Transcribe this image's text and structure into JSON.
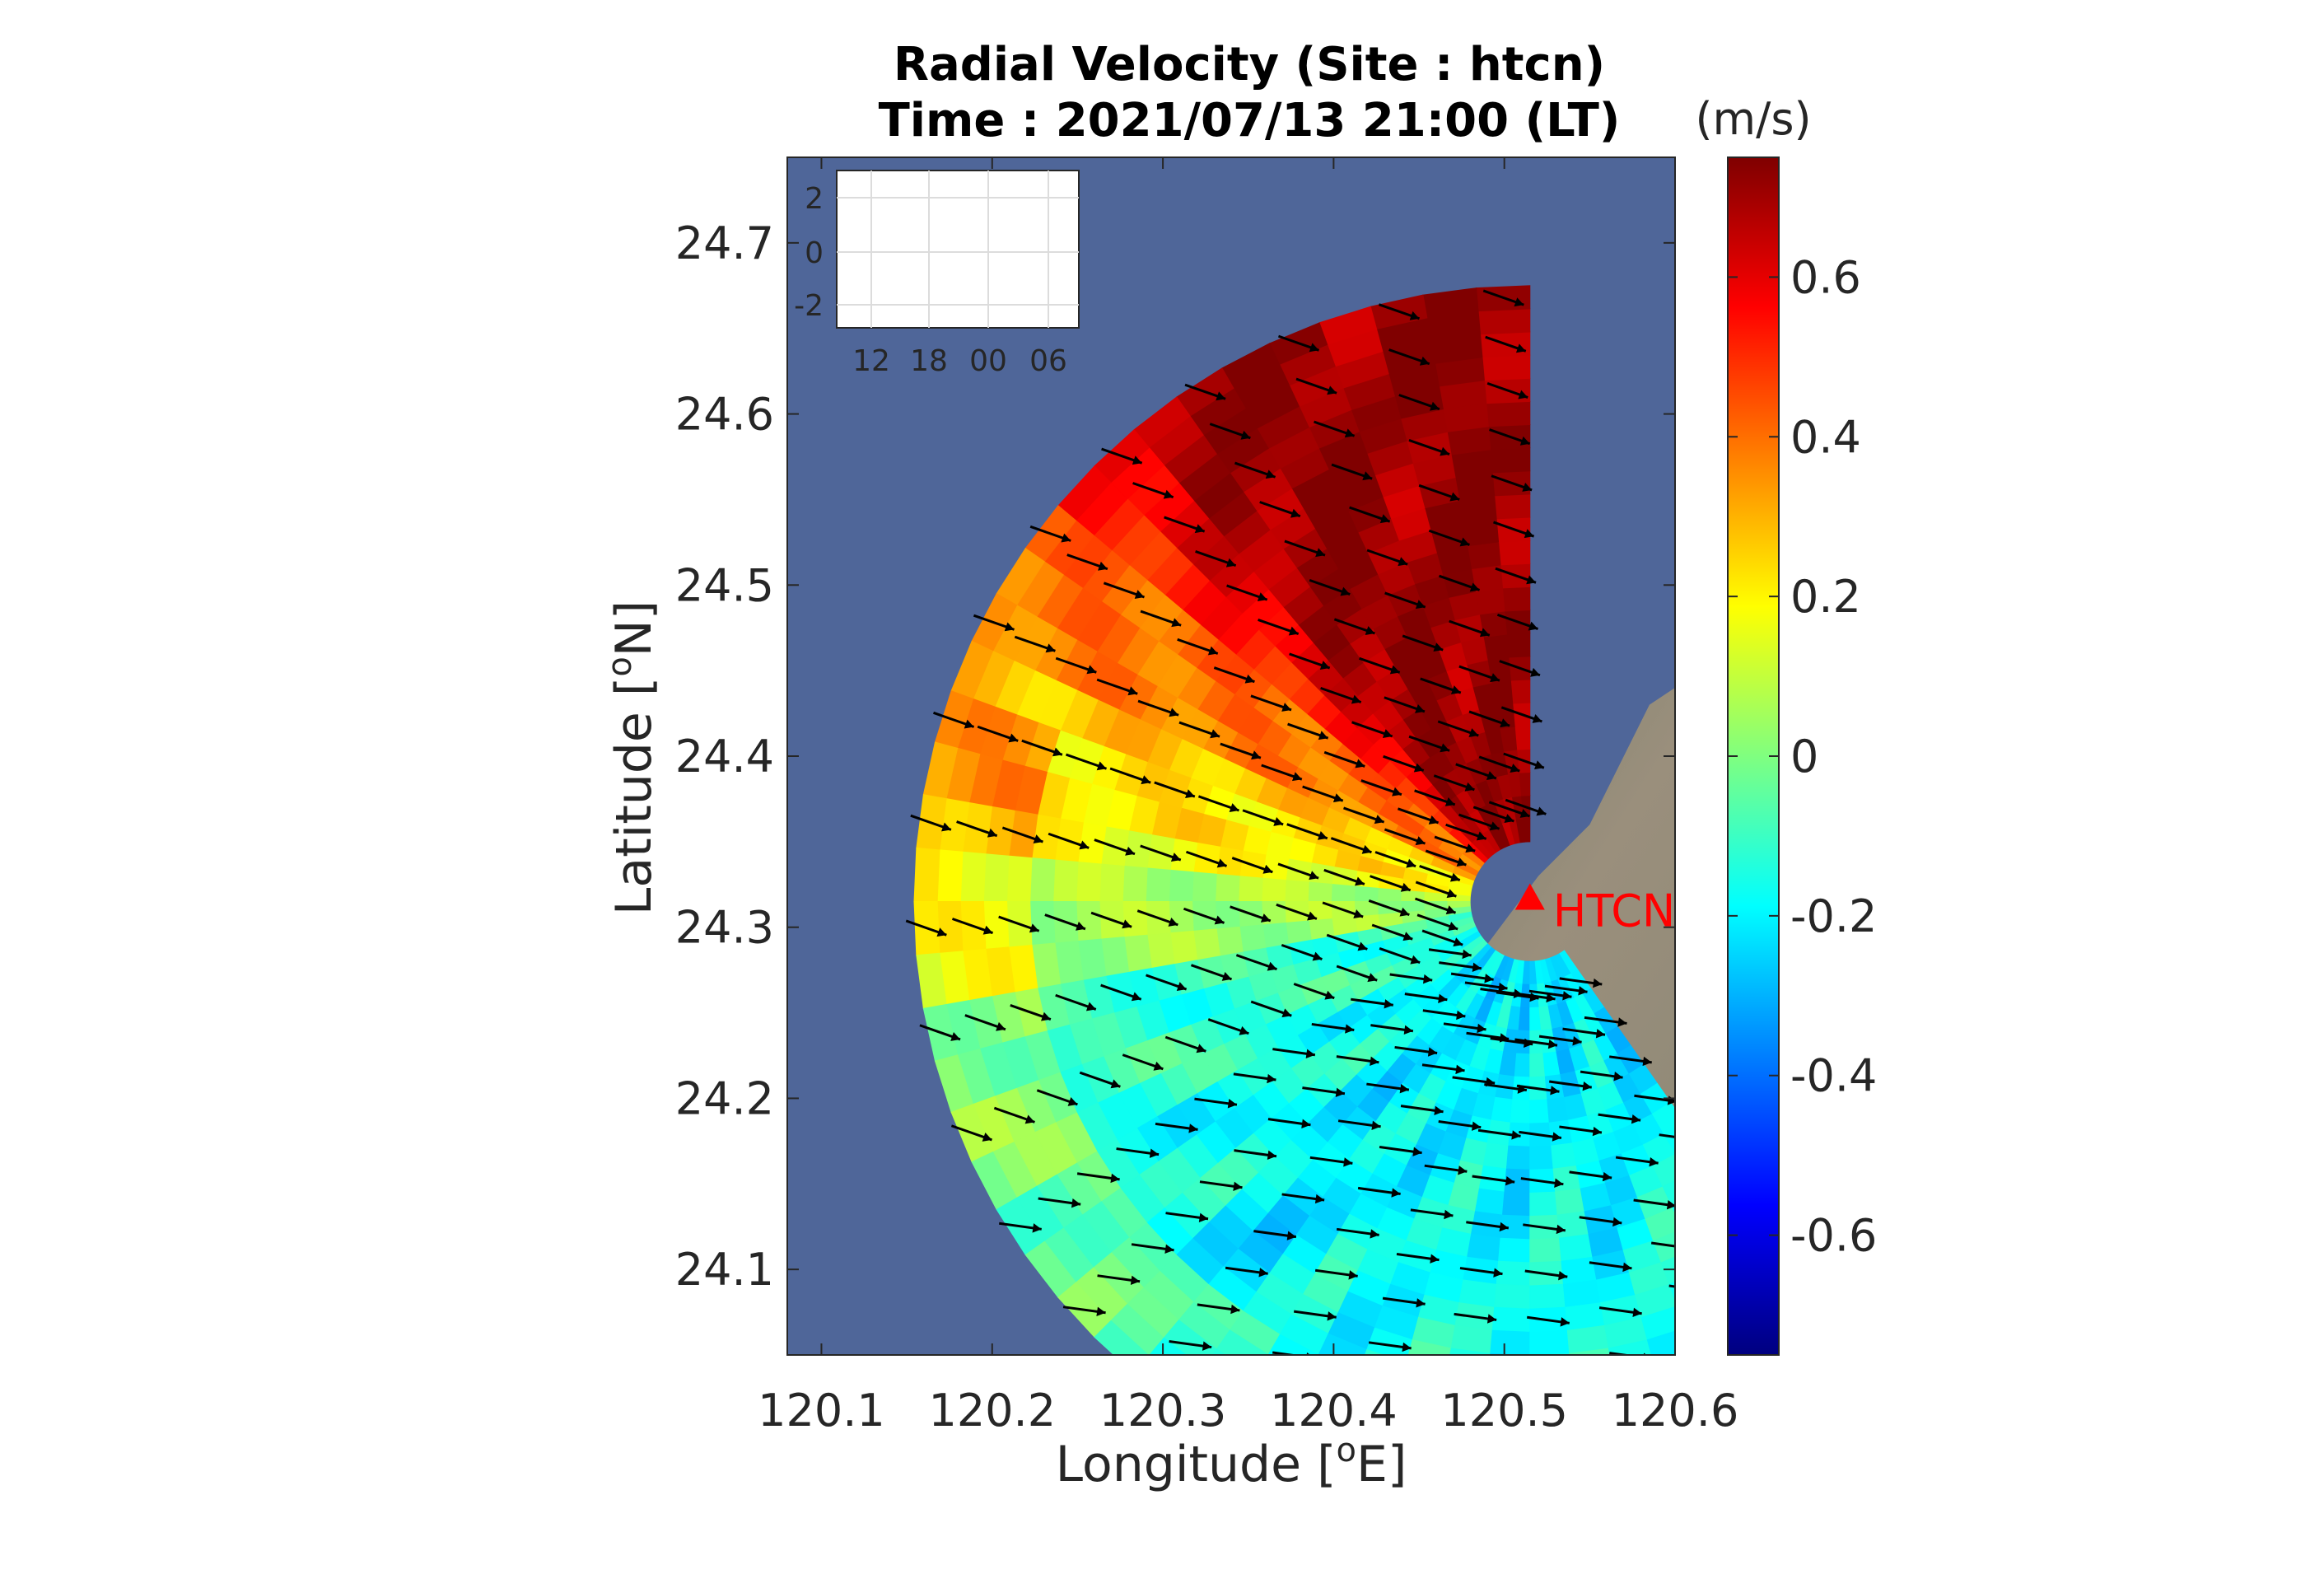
{
  "chart_data": {
    "type": "heatmap",
    "title_line1": "Radial Velocity (Site : htcn)",
    "title_line2": "Time : 2021/07/13 21:00 (LT)",
    "xlabel": "Longitude [",
    "xlabel_sup": "o",
    "xlabel_end": "E]",
    "ylabel": "Latitude [",
    "ylabel_sup": "o",
    "ylabel_end": "N]",
    "xlim": [
      120.08,
      120.6
    ],
    "ylim": [
      24.05,
      24.75
    ],
    "xticks": [
      120.1,
      120.2,
      120.3,
      120.4,
      120.5,
      120.6
    ],
    "xtick_labels": [
      "120.1",
      "120.2",
      "120.3",
      "120.4",
      "120.5",
      "120.6"
    ],
    "yticks": [
      24.1,
      24.2,
      24.3,
      24.4,
      24.5,
      24.6,
      24.7
    ],
    "ytick_labels": [
      "24.1",
      "24.2",
      "24.3",
      "24.4",
      "24.5",
      "24.6",
      "24.7"
    ],
    "colorbar": {
      "label": "(m/s)",
      "clim": [
        -0.75,
        0.75
      ],
      "ticks": [
        0.6,
        0.4,
        0.2,
        0,
        -0.2,
        -0.4,
        -0.6
      ],
      "tick_labels": [
        "0.6",
        "0.4",
        "0.2",
        "0",
        "-0.2",
        "-0.4",
        "-0.6"
      ],
      "colormap": "jet"
    },
    "site": {
      "name": "HTCN",
      "lon": 120.515,
      "lat": 24.315,
      "color": "#ff0000"
    },
    "coverage": {
      "bearing_start_deg": 0,
      "bearing_end_deg": 220,
      "range_max_deg": 0.36
    },
    "inset": {
      "yticks": [
        2,
        0,
        -2
      ],
      "ytick_labels": [
        "2",
        "0",
        "-2"
      ],
      "xtick_labels": [
        "12",
        "18",
        "00",
        "06"
      ]
    },
    "colors": {
      "sea": "#4f6699",
      "land": "#8d8a78",
      "arrow": "#000000"
    }
  }
}
